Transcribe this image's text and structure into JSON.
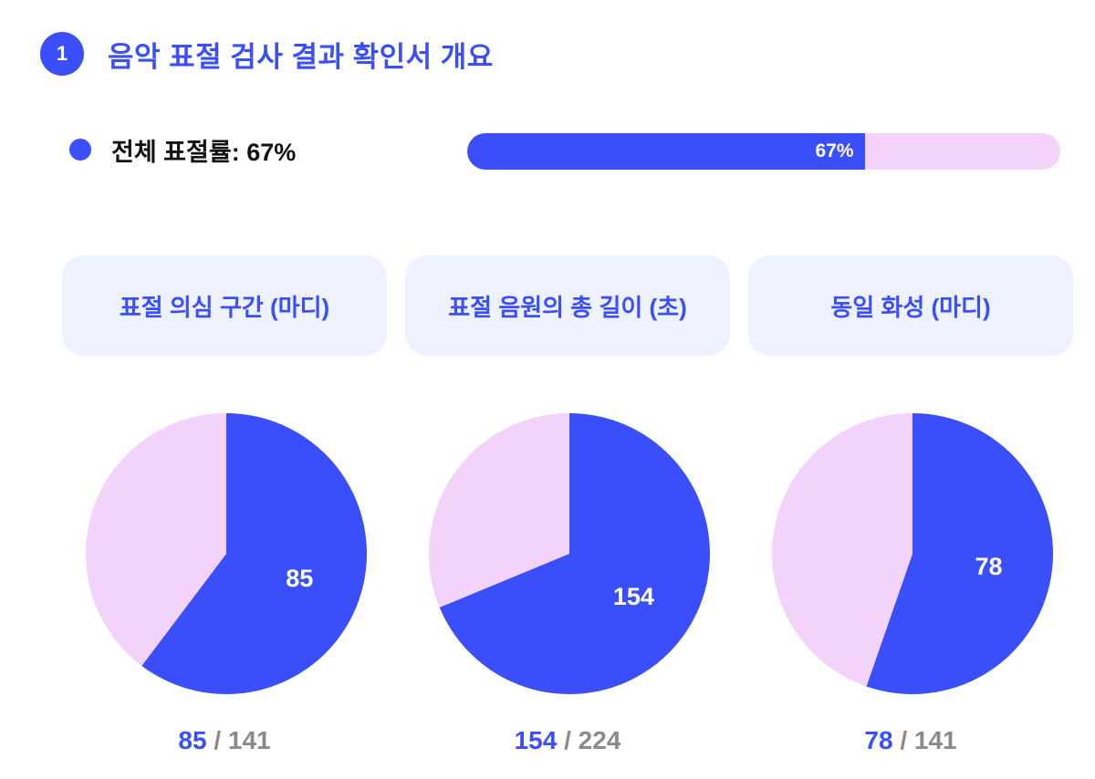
{
  "section": {
    "number": "1",
    "title": "음악 표절 검사 결과 확인서 개요"
  },
  "overall": {
    "label": "전체 표절률: 67%",
    "percent": 67,
    "bar_text": "67%"
  },
  "colors": {
    "accent": "#3a4ffa",
    "remainder": "#f4d3fb",
    "card_bg": "#eef1ff",
    "muted": "#8a8a8a"
  },
  "chart_data": [
    {
      "type": "pie",
      "title": "표절 의심 구간 (마디)",
      "value": 85,
      "total": 141,
      "slices": [
        {
          "label": "85",
          "value": 85
        },
        {
          "label": "",
          "value": 56
        }
      ]
    },
    {
      "type": "pie",
      "title": "표절 음원의 총 길이 (초)",
      "value": 154,
      "total": 224,
      "slices": [
        {
          "label": "154",
          "value": 154
        },
        {
          "label": "",
          "value": 70
        }
      ]
    },
    {
      "type": "pie",
      "title": "동일 화성 (마디)",
      "value": 78,
      "total": 141,
      "slices": [
        {
          "label": "78",
          "value": 78
        },
        {
          "label": "",
          "value": 63
        }
      ]
    }
  ],
  "ratios": [
    {
      "value": "85",
      "sep": " / ",
      "total": "141"
    },
    {
      "value": "154",
      "sep": " / ",
      "total": "224"
    },
    {
      "value": "78",
      "sep": " / ",
      "total": "141"
    }
  ]
}
